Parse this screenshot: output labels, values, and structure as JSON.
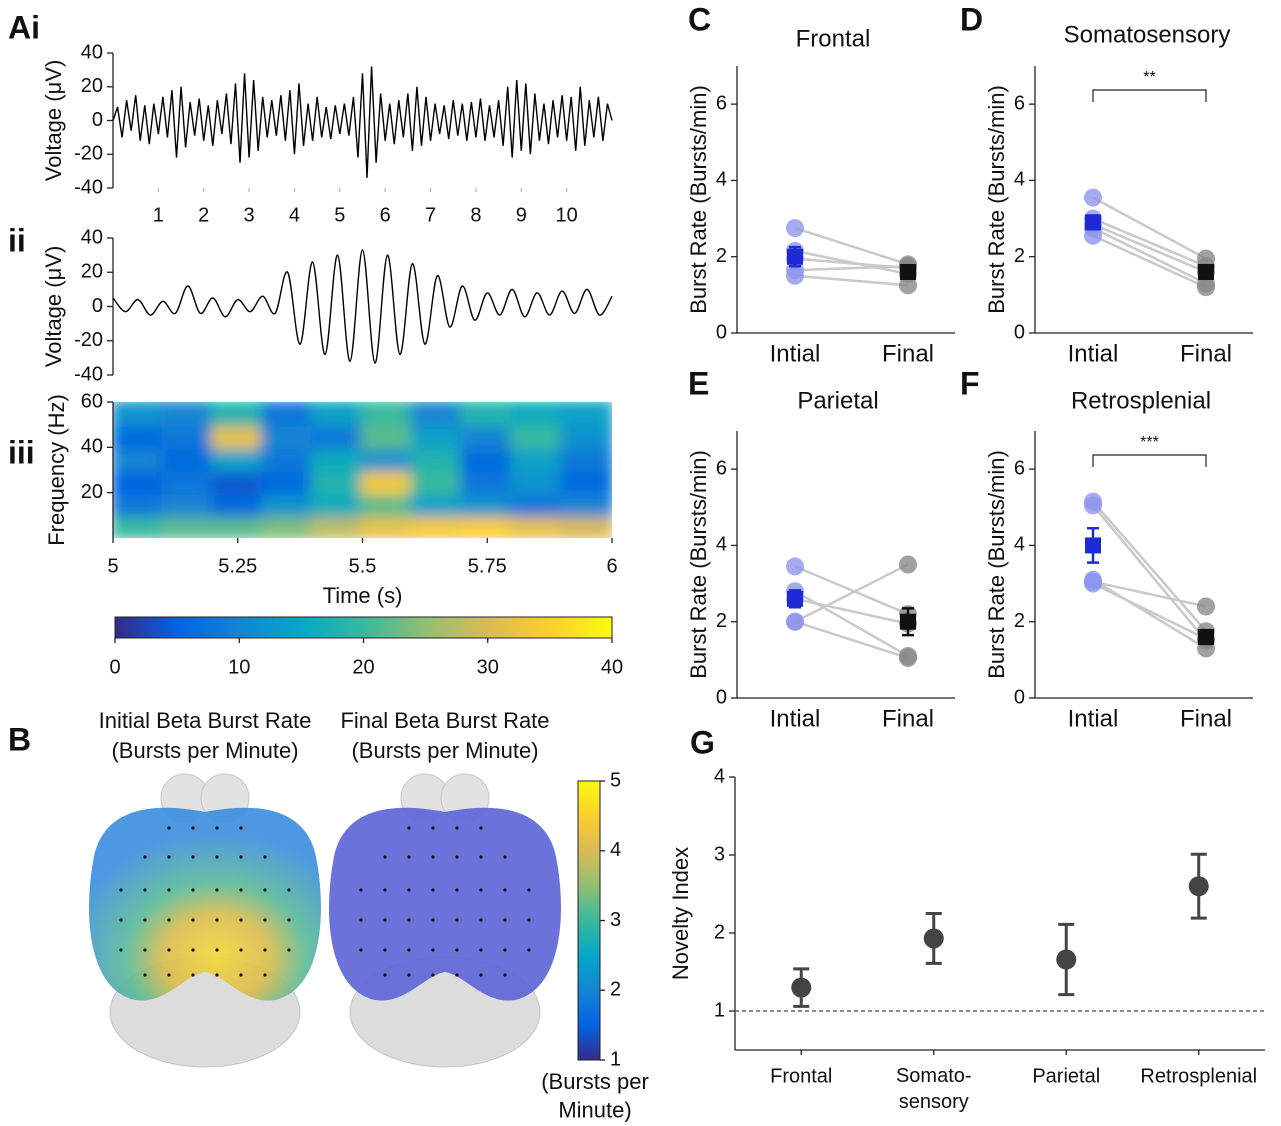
{
  "chart_data": [
    {
      "type": "line",
      "panel_label": "Ai",
      "ylabel": "Voltage (μV)",
      "xlim": [
        0,
        11
      ],
      "ylim": [
        -40,
        40
      ],
      "xticks": [
        1,
        2,
        3,
        4,
        5,
        6,
        7,
        8,
        9,
        10
      ],
      "yticks": [
        -40,
        -20,
        0,
        20,
        40
      ],
      "color": "#000000",
      "x": [
        0,
        0.1,
        0.2,
        0.3,
        0.4,
        0.5,
        0.6,
        0.7,
        0.8,
        0.9,
        1,
        1.1,
        1.2,
        1.3,
        1.4,
        1.5,
        1.6,
        1.7,
        1.8,
        1.9,
        2,
        2.1,
        2.2,
        2.3,
        2.4,
        2.5,
        2.6,
        2.7,
        2.8,
        2.9,
        3,
        3.1,
        3.2,
        3.3,
        3.4,
        3.5,
        3.6,
        3.7,
        3.8,
        3.9,
        4,
        4.1,
        4.2,
        4.3,
        4.4,
        4.5,
        4.6,
        4.7,
        4.8,
        4.9,
        5,
        5.1,
        5.2,
        5.3,
        5.4,
        5.5,
        5.6,
        5.7,
        5.8,
        5.9,
        6,
        6.1,
        6.2,
        6.3,
        6.4,
        6.5,
        6.6,
        6.7,
        6.8,
        6.9,
        7,
        7.1,
        7.2,
        7.3,
        7.4,
        7.5,
        7.6,
        7.7,
        7.8,
        7.9,
        8,
        8.1,
        8.2,
        8.3,
        8.4,
        8.5,
        8.6,
        8.7,
        8.8,
        8.9,
        9,
        9.1,
        9.2,
        9.3,
        9.4,
        9.5,
        9.6,
        9.7,
        9.8,
        9.9,
        10,
        10.1,
        10.2,
        10.3,
        10.4,
        10.5,
        10.6,
        10.7,
        10.8,
        10.9,
        11
      ],
      "values": [
        0,
        8,
        -10,
        12,
        -6,
        15,
        -12,
        9,
        -14,
        10,
        -8,
        14,
        -10,
        18,
        -22,
        20,
        -16,
        11,
        -9,
        13,
        -12,
        9,
        -15,
        12,
        -8,
        16,
        -14,
        22,
        -25,
        28,
        -22,
        24,
        -18,
        14,
        -10,
        12,
        -9,
        15,
        -12,
        18,
        -20,
        22,
        -15,
        10,
        -12,
        14,
        -10,
        8,
        -11,
        9,
        -8,
        10,
        -9,
        14,
        -22,
        28,
        -34,
        32,
        -25,
        16,
        -12,
        10,
        -14,
        12,
        -10,
        16,
        -18,
        20,
        -15,
        14,
        -12,
        10,
        -8,
        9,
        -11,
        12,
        -9,
        10,
        -12,
        11,
        -10,
        13,
        -12,
        9,
        -10,
        12,
        -15,
        20,
        -22,
        24,
        -18,
        22,
        -20,
        16,
        -12,
        10,
        -14,
        12,
        -10,
        15,
        -12,
        14,
        -18,
        20,
        -15,
        12,
        -10,
        14,
        -12,
        10,
        0
      ]
    },
    {
      "type": "line",
      "panel_label": "ii",
      "ylabel": "Voltage (μV)",
      "xlim": [
        5,
        6
      ],
      "ylim": [
        -40,
        40
      ],
      "yticks": [
        -40,
        -20,
        0,
        20,
        40
      ],
      "color": "#000000",
      "smooth": true,
      "x": [
        5,
        5.025,
        5.05,
        5.075,
        5.1,
        5.125,
        5.15,
        5.175,
        5.2,
        5.225,
        5.25,
        5.275,
        5.3,
        5.325,
        5.35,
        5.375,
        5.4,
        5.425,
        5.45,
        5.475,
        5.5,
        5.525,
        5.55,
        5.575,
        5.6,
        5.625,
        5.65,
        5.675,
        5.7,
        5.725,
        5.75,
        5.775,
        5.8,
        5.825,
        5.85,
        5.875,
        5.9,
        5.925,
        5.95,
        5.975,
        6
      ],
      "values": [
        5,
        -3,
        4,
        -5,
        3,
        -4,
        12,
        -4,
        5,
        -6,
        4,
        -3,
        6,
        -4,
        20,
        -22,
        26,
        -28,
        30,
        -32,
        33,
        -33,
        30,
        -28,
        25,
        -22,
        18,
        -12,
        12,
        -8,
        8,
        -5,
        10,
        -6,
        8,
        -5,
        9,
        -4,
        10,
        -5,
        6
      ]
    },
    {
      "type": "heatmap",
      "panel_label": "iii",
      "ylabel": "Frequency (Hz)",
      "xlabel": "Time (s)",
      "xlim": [
        5,
        6
      ],
      "ylim": [
        0,
        60
      ],
      "xticks": [
        5,
        5.25,
        5.5,
        5.75,
        6
      ],
      "yticks": [
        20,
        40,
        60
      ],
      "xbins": [
        5,
        5.1,
        5.2,
        5.3,
        5.4,
        5.5,
        5.6,
        5.7,
        5.8,
        5.9,
        6
      ],
      "ybins": [
        0,
        10,
        20,
        30,
        40,
        50,
        60
      ],
      "z": [
        [
          20,
          22,
          22,
          24,
          28,
          32,
          34,
          35,
          32,
          30
        ],
        [
          8,
          10,
          6,
          12,
          16,
          22,
          14,
          12,
          8,
          10
        ],
        [
          5,
          8,
          4,
          6,
          18,
          34,
          20,
          8,
          12,
          6
        ],
        [
          10,
          6,
          14,
          8,
          16,
          12,
          18,
          6,
          14,
          8
        ],
        [
          6,
          8,
          32,
          10,
          8,
          22,
          14,
          10,
          20,
          12
        ],
        [
          12,
          10,
          18,
          8,
          14,
          20,
          10,
          18,
          16,
          14
        ]
      ],
      "clim": [
        0,
        40
      ],
      "cticks": [
        0,
        10,
        20,
        30,
        40
      ]
    },
    {
      "type": "brain_map",
      "panel_label": "B",
      "maps": [
        {
          "title": "Initial Beta Burst Rate",
          "subtitle": "(Bursts per Minute)"
        },
        {
          "title": "Final Beta Burst Rate",
          "subtitle": "(Bursts per Minute)"
        }
      ],
      "clim": [
        1,
        5
      ],
      "cticks": [
        1,
        2,
        3,
        4,
        5
      ],
      "clabel": "(Bursts per\nMinute)"
    },
    {
      "type": "paired",
      "panel_label": "C",
      "title": "Frontal",
      "ylabel": "Burst Rate (Bursts/min)",
      "categories": [
        "Intial",
        "Final"
      ],
      "ylim": [
        0,
        7
      ],
      "yticks": [
        0,
        2,
        4,
        6
      ],
      "points": [
        [
          2.75,
          2.15,
          1.95,
          1.65,
          1.5
        ],
        [
          1.8,
          1.55,
          1.7,
          1.75,
          1.25
        ]
      ],
      "means": [
        2.0,
        1.6
      ],
      "errors": [
        0.25,
        0.1
      ],
      "colors": [
        "#8d96ee",
        "#8a8a8a"
      ],
      "mean_colors": [
        "#1c2bd4",
        "#111111"
      ],
      "line_color": "#c9c9c9"
    },
    {
      "type": "paired",
      "panel_label": "D",
      "title": "Somatosensory",
      "ylabel": "Burst Rate (Bursts/min)",
      "categories": [
        "Intial",
        "Final"
      ],
      "ylim": [
        0,
        7
      ],
      "yticks": [
        0,
        2,
        4,
        6
      ],
      "points": [
        [
          3.55,
          3.0,
          2.85,
          2.75,
          2.55
        ],
        [
          1.95,
          1.75,
          1.6,
          1.3,
          1.2
        ]
      ],
      "means": [
        2.9,
        1.6
      ],
      "errors": [
        0.18,
        0.15
      ],
      "colors": [
        "#8d96ee",
        "#8a8a8a"
      ],
      "mean_colors": [
        "#1c2bd4",
        "#111111"
      ],
      "line_color": "#c9c9c9",
      "significance": "**"
    },
    {
      "type": "paired",
      "panel_label": "E",
      "title": "Parietal",
      "ylabel": "Burst Rate (Bursts/min)",
      "categories": [
        "Intial",
        "Final"
      ],
      "ylim": [
        0,
        7
      ],
      "yticks": [
        0,
        2,
        4,
        6
      ],
      "points": [
        [
          3.45,
          2.8,
          2.6,
          2.0,
          2.0
        ],
        [
          2.2,
          1.1,
          1.95,
          3.5,
          1.05
        ]
      ],
      "means": [
        2.6,
        2.0
      ],
      "errors": [
        0.22,
        0.35
      ],
      "colors": [
        "#8d96ee",
        "#8a8a8a"
      ],
      "mean_colors": [
        "#1c2bd4",
        "#111111"
      ],
      "line_color": "#c9c9c9"
    },
    {
      "type": "paired",
      "panel_label": "F",
      "title": "Retrosplenial",
      "ylabel": "Burst Rate (Bursts/min)",
      "categories": [
        "Intial",
        "Final"
      ],
      "ylim": [
        0,
        7
      ],
      "yticks": [
        0,
        2,
        4,
        6
      ],
      "points": [
        [
          5.15,
          5.05,
          3.1,
          3.05,
          3.0
        ],
        [
          1.75,
          1.5,
          1.3,
          2.4,
          1.55
        ]
      ],
      "means": [
        4.0,
        1.6
      ],
      "errors": [
        0.45,
        0.18
      ],
      "colors": [
        "#8d96ee",
        "#8a8a8a"
      ],
      "mean_colors": [
        "#1c2bd4",
        "#111111"
      ],
      "line_color": "#c9c9c9",
      "significance": "***"
    },
    {
      "type": "errorbar",
      "panel_label": "G",
      "ylabel": "Novelty Index",
      "categories": [
        "Frontal",
        "Somato-\nsensory",
        "Parietal",
        "Retrosplenial"
      ],
      "values": [
        1.3,
        1.93,
        1.66,
        2.6
      ],
      "errors": [
        0.24,
        0.32,
        0.45,
        0.41
      ],
      "ylim": [
        0.5,
        4
      ],
      "yticks": [
        1,
        2,
        3,
        4
      ],
      "reference_line": 1,
      "color": "#444444"
    }
  ]
}
